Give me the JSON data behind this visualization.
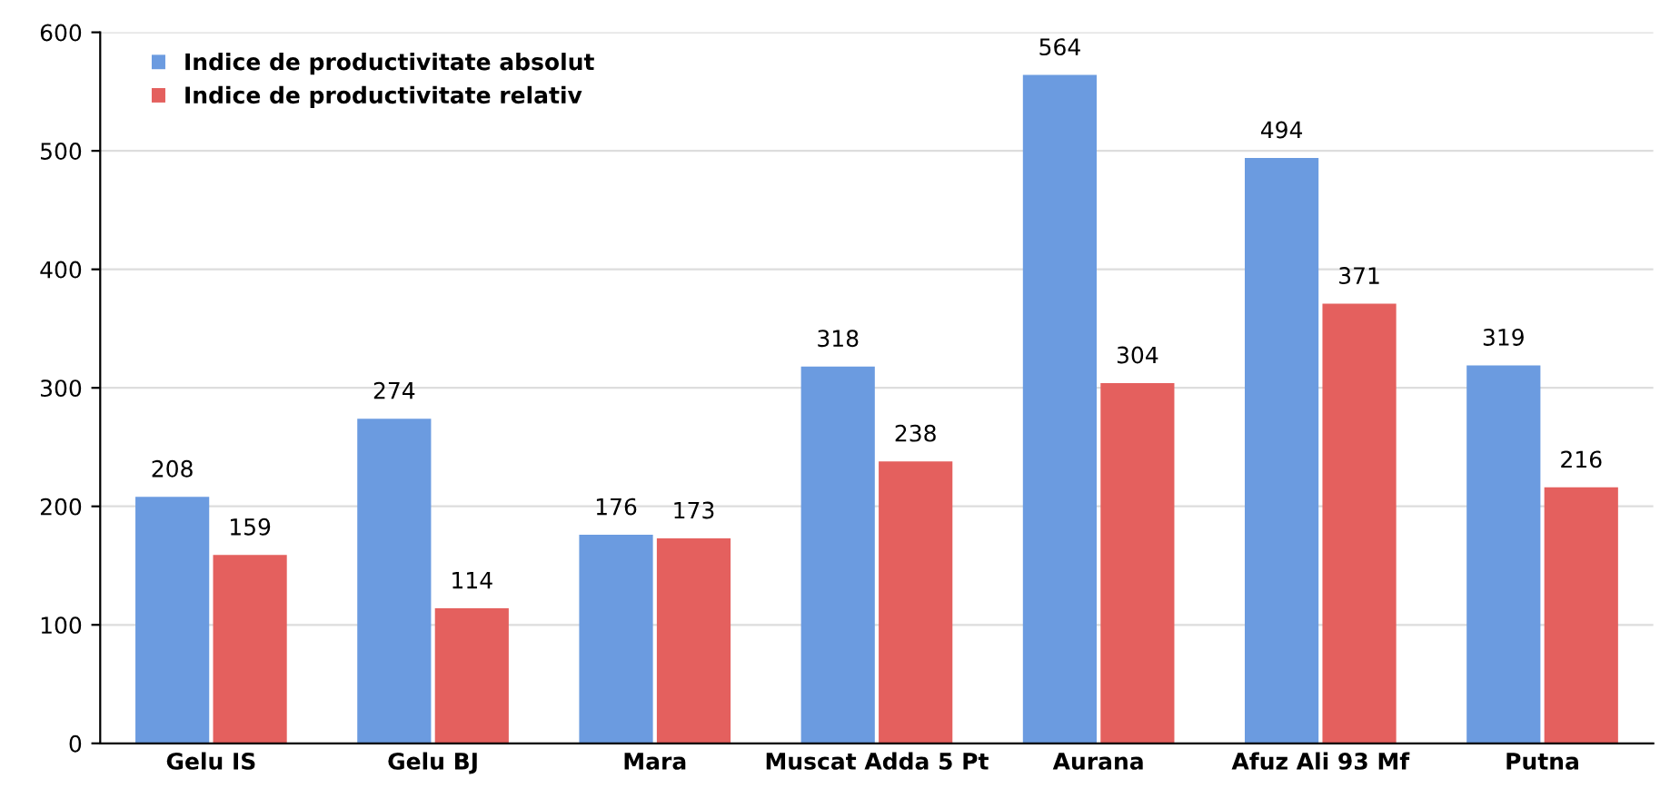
{
  "chart_data": {
    "type": "bar",
    "categories": [
      "Gelu IS",
      "Gelu BJ",
      "Mara",
      "Muscat Adda 5 Pt",
      "Aurana",
      "Afuz Ali 93 Mf",
      "Putna"
    ],
    "series": [
      {
        "name": "Indice de productivitate absolut",
        "color": "#6b9be0",
        "values": [
          208,
          274,
          176,
          318,
          564,
          494,
          319
        ]
      },
      {
        "name": "Indice de productivitate relativ",
        "color": "#e4605e",
        "values": [
          159,
          114,
          173,
          238,
          304,
          371,
          216
        ]
      }
    ],
    "ylim": [
      0,
      600
    ],
    "yticks": [
      0,
      100,
      200,
      300,
      400,
      500,
      600
    ],
    "grid": "y",
    "legend": "top left",
    "data_labels": true
  }
}
